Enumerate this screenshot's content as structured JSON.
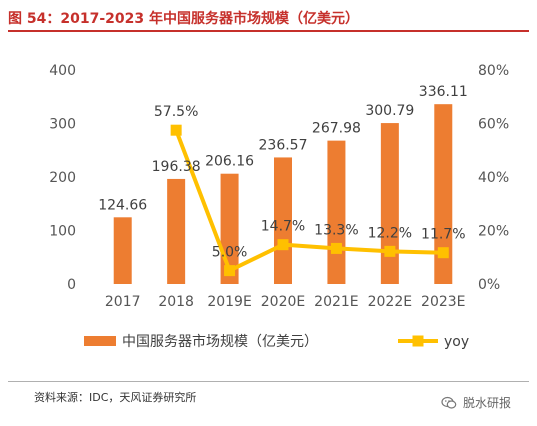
{
  "header": {
    "title": "图 54：2017-2023 年中国服务器市场规模（亿美元）"
  },
  "chart_data": {
    "type": "bar",
    "categories": [
      "2017",
      "2018",
      "2019E",
      "2020E",
      "2021E",
      "2022E",
      "2023E"
    ],
    "series": [
      {
        "name": "中国服务器市场规模（亿美元）",
        "type": "bar",
        "axis": "left",
        "color": "#ed7d31",
        "values": [
          124.66,
          196.38,
          206.16,
          236.57,
          267.98,
          300.79,
          336.11
        ],
        "labels": [
          "124.66",
          "196.38",
          "206.16",
          "236.57",
          "267.98",
          "300.79",
          "336.11"
        ]
      },
      {
        "name": "yoy",
        "type": "line",
        "axis": "right",
        "color": "#ffc000",
        "values": [
          null,
          57.5,
          5.0,
          14.7,
          13.3,
          12.2,
          11.7
        ],
        "labels": [
          "",
          "57.5%",
          "5.0%",
          "14.7%",
          "13.3%",
          "12.2%",
          "11.7%"
        ]
      }
    ],
    "y_left": {
      "ylim": [
        0,
        400
      ],
      "ticks": [
        "0",
        "100",
        "200",
        "300",
        "400"
      ]
    },
    "y_right": {
      "ylim": [
        0,
        80
      ],
      "ticks": [
        "0%",
        "20%",
        "40%",
        "60%",
        "80%"
      ]
    },
    "grid": false,
    "legend": "bottom"
  },
  "footer": {
    "source": "资料来源：IDC，天风证券研究所",
    "watermark": "脱水研报",
    "watermark_icon": "wechat-icon"
  }
}
